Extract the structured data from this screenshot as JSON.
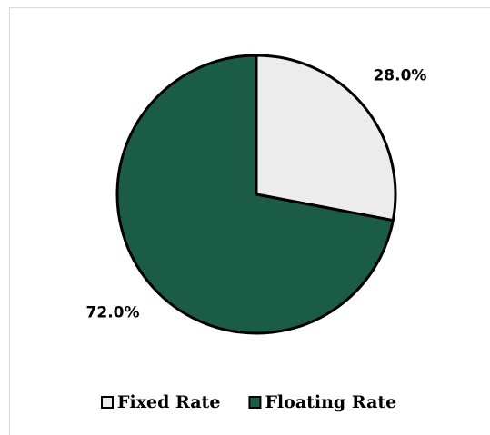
{
  "chart_data": {
    "type": "pie",
    "categories": [
      "Fixed Rate",
      "Floating Rate"
    ],
    "values": [
      28,
      72
    ],
    "value_labels": [
      "28.0%",
      "72.0%"
    ],
    "colors": [
      "#ececec",
      "#1b5c46"
    ],
    "legend": "bottom"
  }
}
